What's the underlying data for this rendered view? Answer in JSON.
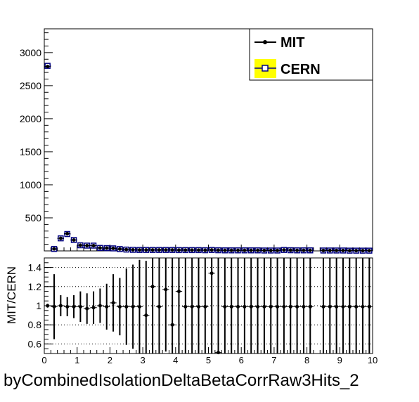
{
  "chart_data": [
    {
      "type": "scatter",
      "panel": "main",
      "title": "",
      "xlabel": "",
      "ylabel": "",
      "xlim": [
        0,
        10
      ],
      "ylim": [
        0,
        3360
      ],
      "yticks": [
        500,
        1000,
        1500,
        2000,
        2500,
        3000
      ],
      "grid": false,
      "legend": {
        "placement": "top-right",
        "entries": [
          {
            "label": "MIT",
            "color": "#000000",
            "marker": "filled-circle-line"
          },
          {
            "label": "CERN",
            "color": "#ffff00",
            "marker": "open-square-box"
          }
        ]
      },
      "bin_width": 0.2,
      "series": [
        {
          "name": "MIT",
          "color": "#000000",
          "x": [
            0.1,
            0.3,
            0.5,
            0.7,
            0.9,
            1.1,
            1.3,
            1.5,
            1.7,
            1.9,
            2.1,
            2.3,
            2.5,
            2.7,
            2.9,
            3.1,
            3.3,
            3.5,
            3.7,
            3.9,
            4.1,
            4.3,
            4.5,
            4.7,
            4.9,
            5.1,
            5.3,
            5.5,
            5.7,
            5.9,
            6.1,
            6.3,
            6.5,
            6.7,
            6.9,
            7.1,
            7.3,
            7.5,
            7.7,
            7.9,
            8.1,
            8.5,
            8.7,
            8.9,
            9.1,
            9.3,
            9.5,
            9.7,
            9.9
          ],
          "y": [
            2790,
            30,
            190,
            260,
            165,
            85,
            80,
            80,
            45,
            42,
            38,
            28,
            20,
            16,
            14,
            14,
            14,
            14,
            14,
            14,
            12,
            12,
            12,
            12,
            10,
            14,
            10,
            8,
            8,
            8,
            8,
            8,
            8,
            6,
            6,
            6,
            14,
            10,
            8,
            8,
            8,
            6,
            6,
            6,
            6,
            4,
            4,
            4,
            4
          ]
        },
        {
          "name": "CERN",
          "color": "#000080",
          "x": [
            0.1,
            0.3,
            0.5,
            0.7,
            0.9,
            1.1,
            1.3,
            1.5,
            1.7,
            1.9,
            2.1,
            2.3,
            2.5,
            2.7,
            2.9,
            3.1,
            3.3,
            3.5,
            3.7,
            3.9,
            4.1,
            4.3,
            4.5,
            4.7,
            4.9,
            5.1,
            5.3,
            5.5,
            5.7,
            5.9,
            6.1,
            6.3,
            6.5,
            6.7,
            6.9,
            7.1,
            7.3,
            7.5,
            7.7,
            7.9,
            8.1,
            8.5,
            8.7,
            8.9,
            9.1,
            9.3,
            9.5,
            9.7,
            9.9
          ],
          "y": [
            2800,
            30,
            190,
            255,
            165,
            85,
            80,
            80,
            45,
            42,
            38,
            28,
            20,
            16,
            14,
            14,
            14,
            14,
            14,
            14,
            12,
            12,
            12,
            12,
            10,
            14,
            10,
            8,
            8,
            8,
            8,
            8,
            8,
            6,
            6,
            6,
            14,
            10,
            8,
            8,
            8,
            6,
            6,
            6,
            6,
            4,
            4,
            4,
            4
          ]
        }
      ]
    },
    {
      "type": "scatter",
      "panel": "ratio",
      "title": "",
      "xlabel": "byCombinedIsolationDeltaBetaCorrRaw3Hits_2",
      "ylabel": "MIT/CERN",
      "xlim": [
        0,
        10
      ],
      "ylim": [
        0.5,
        1.5
      ],
      "xticks": [
        0,
        1,
        2,
        3,
        4,
        5,
        6,
        7,
        8,
        9,
        10
      ],
      "yticks": [
        0.6,
        0.8,
        1,
        1.2,
        1.4
      ],
      "grid": "horizontal-dotted",
      "series": [
        {
          "name": "MIT/CERN",
          "color": "#000000",
          "x": [
            0.1,
            0.3,
            0.5,
            0.7,
            0.9,
            1.1,
            1.3,
            1.5,
            1.7,
            1.9,
            2.1,
            2.3,
            2.5,
            2.7,
            2.9,
            3.1,
            3.3,
            3.5,
            3.7,
            3.9,
            4.1,
            4.3,
            4.5,
            4.7,
            4.9,
            5.1,
            5.3,
            5.5,
            5.7,
            5.9,
            6.1,
            6.3,
            6.5,
            6.7,
            6.9,
            7.1,
            7.3,
            7.5,
            7.7,
            7.9,
            8.1,
            8.5,
            8.7,
            8.9,
            9.1,
            9.3,
            9.5,
            9.7,
            9.9
          ],
          "y": [
            1.0,
            0.99,
            1.0,
            0.99,
            0.99,
            0.99,
            0.97,
            0.98,
            1.0,
            0.99,
            1.03,
            0.99,
            0.99,
            0.99,
            0.99,
            0.9,
            1.2,
            0.99,
            1.17,
            0.8,
            1.15,
            0.99,
            0.99,
            0.99,
            0.99,
            1.34,
            0.51,
            0.99,
            0.99,
            0.99,
            0.99,
            0.99,
            0.99,
            0.99,
            0.99,
            0.99,
            0.99,
            0.99,
            0.99,
            0.99,
            0.99,
            0.99,
            0.99,
            0.99,
            0.99,
            0.99,
            0.99,
            0.99,
            0.99
          ],
          "err_low": [
            0.02,
            0.34,
            0.11,
            0.1,
            0.12,
            0.16,
            0.16,
            0.17,
            0.18,
            0.24,
            0.3,
            0.3,
            0.4,
            0.44,
            0.49,
            0.4,
            0.75,
            0.5,
            0.65,
            0.35,
            0.7,
            0.55,
            0.55,
            0.55,
            0.55,
            0.9,
            0.05,
            0.55,
            0.55,
            0.55,
            0.55,
            0.55,
            0.55,
            0.55,
            0.55,
            0.55,
            0.55,
            0.55,
            0.55,
            0.55,
            0.55,
            0.55,
            0.55,
            0.55,
            0.55,
            0.55,
            0.55,
            0.55,
            0.55
          ],
          "err_high": [
            0.02,
            0.34,
            0.11,
            0.1,
            0.12,
            0.16,
            0.16,
            0.17,
            0.18,
            0.24,
            0.3,
            0.3,
            0.4,
            0.44,
            0.49,
            0.57,
            0.3,
            0.51,
            0.33,
            0.7,
            0.35,
            0.51,
            0.51,
            0.51,
            0.51,
            0.16,
            0.99,
            0.51,
            0.51,
            0.51,
            0.51,
            0.51,
            0.51,
            0.51,
            0.51,
            0.51,
            0.51,
            0.51,
            0.51,
            0.51,
            0.51,
            0.51,
            0.51,
            0.51,
            0.51,
            0.51,
            0.51,
            0.51,
            0.51
          ]
        }
      ]
    }
  ]
}
